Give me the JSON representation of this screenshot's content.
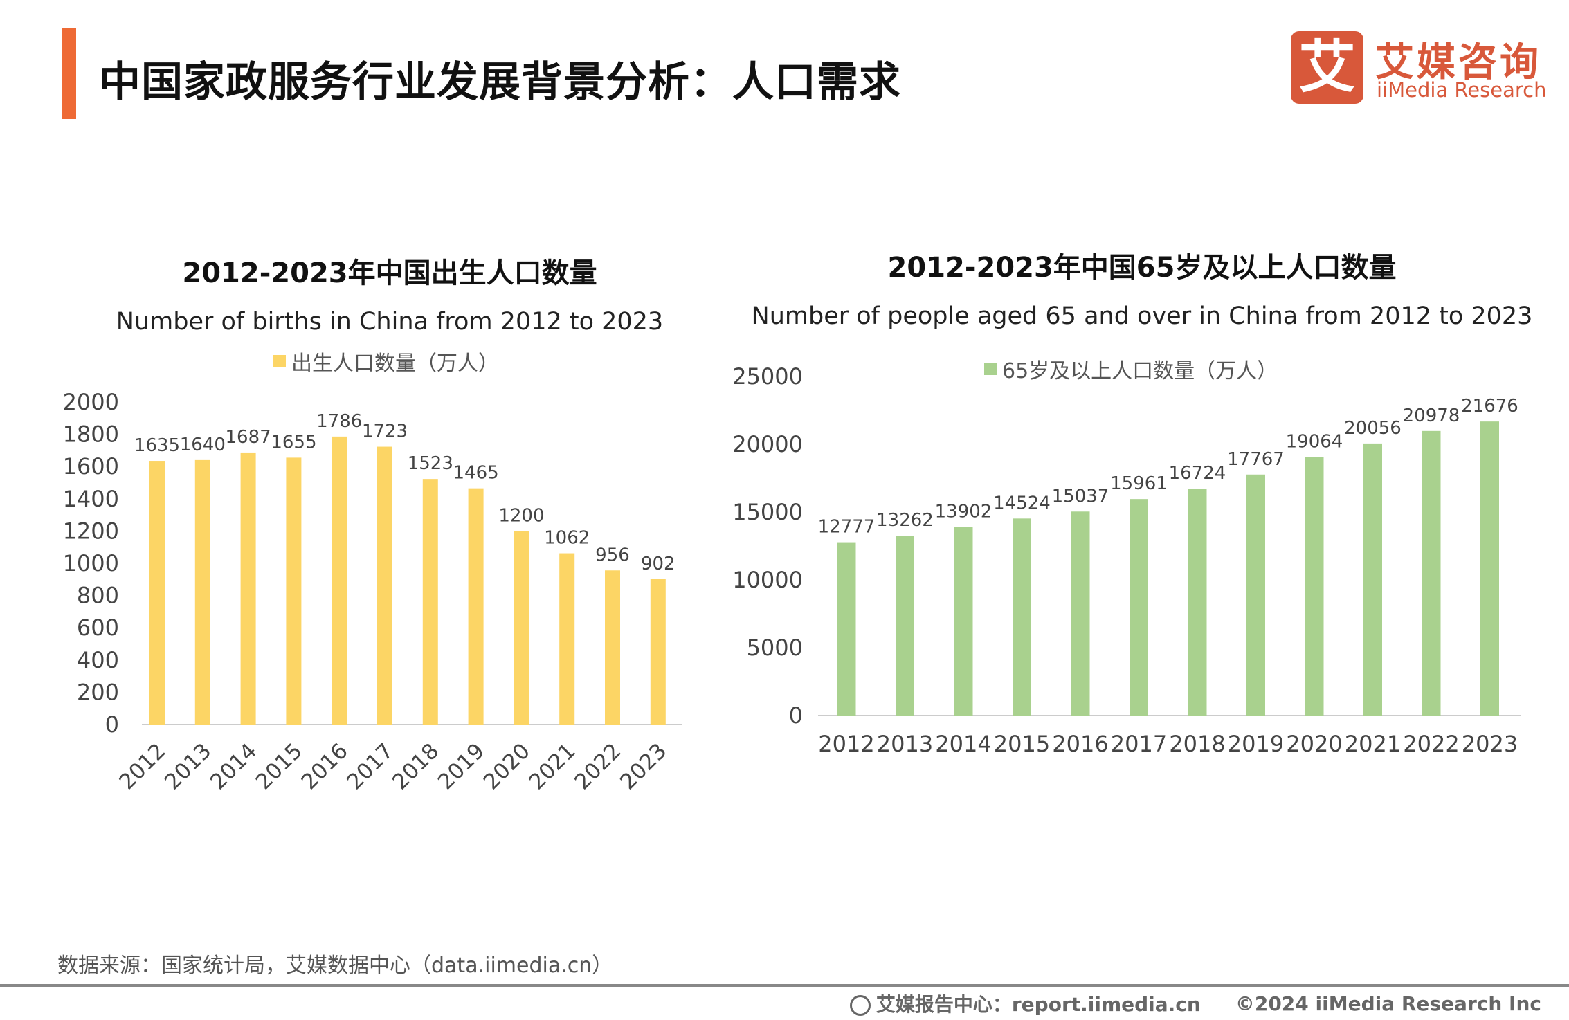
{
  "header": {
    "title": "中国家政服务行业发展背景分析：人口需求",
    "accent_color": "#ee6a35"
  },
  "logo": {
    "mark": "艾",
    "name_cn": "艾媒咨询",
    "name_en": "iiMedia Research",
    "color": "#d8583a"
  },
  "chart_data": [
    {
      "type": "bar",
      "title": "2012-2023年中国出生人口数量",
      "subtitle": "Number of births in China from 2012 to 2023",
      "legend": "出生人口数量（万人）",
      "legend_position": "top",
      "color": "#fcd565",
      "categories": [
        "2012",
        "2013",
        "2014",
        "2015",
        "2016",
        "2017",
        "2018",
        "2019",
        "2020",
        "2021",
        "2022",
        "2023"
      ],
      "values": [
        1635,
        1640,
        1687,
        1655,
        1786,
        1723,
        1523,
        1465,
        1200,
        1062,
        956,
        902
      ],
      "yticks": [
        0,
        200,
        400,
        600,
        800,
        1000,
        1200,
        1400,
        1600,
        1800,
        2000
      ],
      "ylim": [
        0,
        2000
      ],
      "grid": false,
      "xtick_rotation": -45
    },
    {
      "type": "bar",
      "title": "2012-2023年中国65岁及以上人口数量",
      "subtitle": "Number of people aged 65 and over in China from 2012 to 2023",
      "legend": "65岁及以上人口数量（万人）",
      "legend_position": "top",
      "color": "#a9d18e",
      "categories": [
        "2012",
        "2013",
        "2014",
        "2015",
        "2016",
        "2017",
        "2018",
        "2019",
        "2020",
        "2021",
        "2022",
        "2023"
      ],
      "values": [
        12777,
        13262,
        13902,
        14524,
        15037,
        15961,
        16724,
        17767,
        19064,
        20056,
        20978,
        21676
      ],
      "yticks": [
        0,
        5000,
        10000,
        15000,
        20000,
        25000
      ],
      "ylim": [
        0,
        25000
      ],
      "grid": false,
      "xtick_rotation": 0
    }
  ],
  "source": "数据来源：国家统计局，艾媒数据中心（data.iimedia.cn）",
  "footer": {
    "report_center": "艾媒报告中心：report.iimedia.cn",
    "copyright": "©2024  iiMedia Research  Inc"
  }
}
